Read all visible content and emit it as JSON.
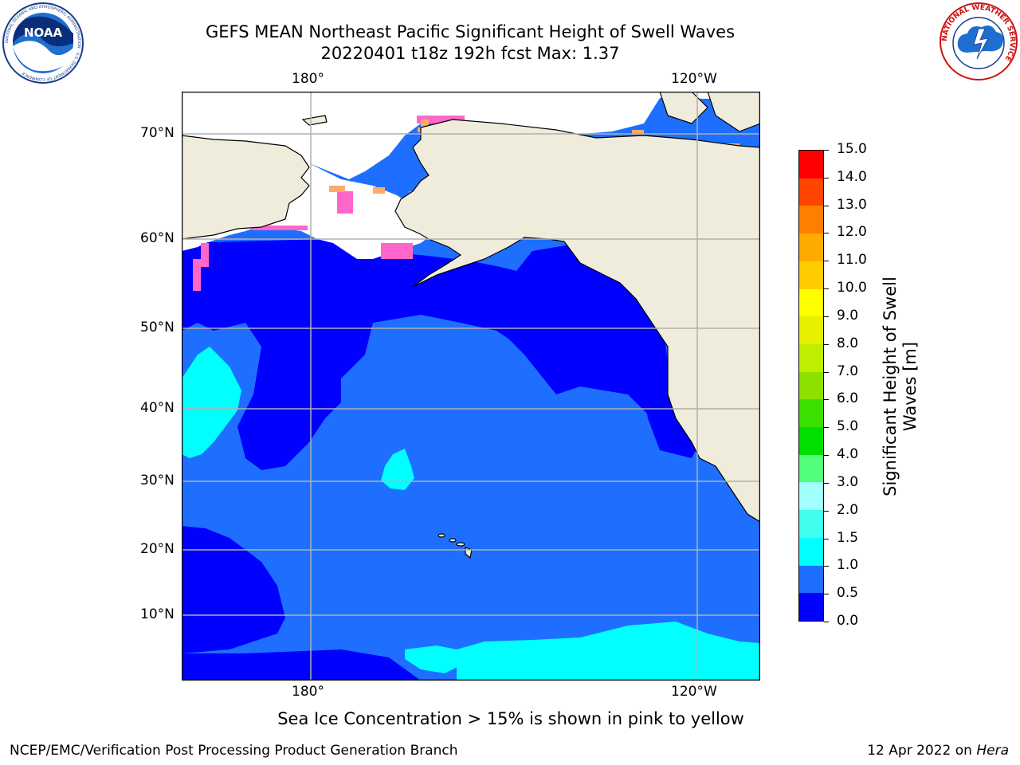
{
  "title_line1": "GEFS MEAN Northeast Pacific Significant Height of Swell Waves",
  "title_line2": "20220401 t18z 192h fcst   Max: 1.37",
  "logos": {
    "left": {
      "name": "noaa-logo",
      "text": "NOAA",
      "ring_text": "NATIONAL OCEANIC AND ATMOSPHERIC ADMINISTRATION · U.S. DEPARTMENT OF COMMERCE"
    },
    "right": {
      "name": "nws-logo",
      "ring_text": "NATIONAL WEATHER SERVICE"
    }
  },
  "map": {
    "top_lon_labels": [
      "180°",
      "120°W"
    ],
    "bottom_lon_labels": [
      "180°",
      "120°W"
    ],
    "lat_labels": [
      "70°N",
      "60°N",
      "50°N",
      "40°N",
      "30°N",
      "20°N",
      "10°N"
    ],
    "colors": {
      "land": "#efecdc",
      "sea_ice": "#ffffff",
      "grid": "#b0b0b0",
      "ice_edge": [
        "#ff66cc",
        "#ff99cc",
        "#ffaa66",
        "#ffdd44"
      ]
    }
  },
  "colorbar": {
    "title": "Significant Height of Swell Waves [m]",
    "tick_labels": [
      "0.0",
      "0.5",
      "1.0",
      "1.5",
      "2.0",
      "3.0",
      "4.0",
      "5.0",
      "6.0",
      "7.0",
      "8.0",
      "9.0",
      "10.0",
      "11.0",
      "12.0",
      "13.0",
      "14.0",
      "15.0"
    ],
    "colors": [
      "#0000ff",
      "#1e6fff",
      "#00ffff",
      "#40ffee",
      "#a0ffff",
      "#52ff7a",
      "#00e000",
      "#3ce000",
      "#8ee000",
      "#c0ee00",
      "#e6f000",
      "#ffff00",
      "#ffcc00",
      "#ffaa00",
      "#ff7f00",
      "#ff4400",
      "#ff0000"
    ]
  },
  "footer_note": "Sea Ice Concentration > 15% is shown in pink to yellow",
  "footer_left": "NCEP/EMC/Verification Post Processing Product Generation Branch",
  "footer_right_prefix": "12 Apr 2022 on ",
  "footer_right_machine": "Hera"
}
